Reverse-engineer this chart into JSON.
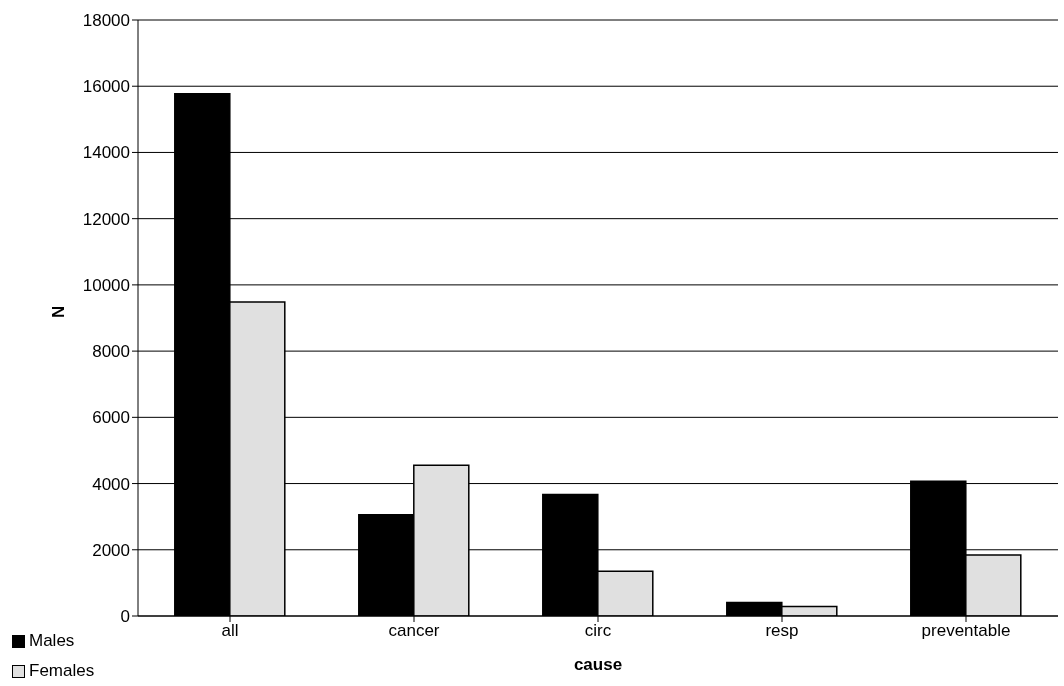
{
  "chart_data": {
    "type": "bar",
    "xlabel": "cause",
    "ylabel": "N",
    "categories": [
      "all",
      "cancer",
      "circ",
      "resp",
      "preventable"
    ],
    "series": [
      {
        "name": "Males",
        "color": "#000000",
        "values": [
          15770,
          3060,
          3670,
          410,
          4070
        ]
      },
      {
        "name": "Females",
        "color": "#e0e0e0",
        "values": [
          9480,
          4550,
          1350,
          290,
          1840
        ]
      }
    ],
    "ylim": [
      0,
      18000
    ],
    "yticks": [
      0,
      2000,
      4000,
      6000,
      8000,
      10000,
      12000,
      14000,
      16000,
      18000
    ],
    "grid": "y",
    "legend": "bottom left"
  }
}
